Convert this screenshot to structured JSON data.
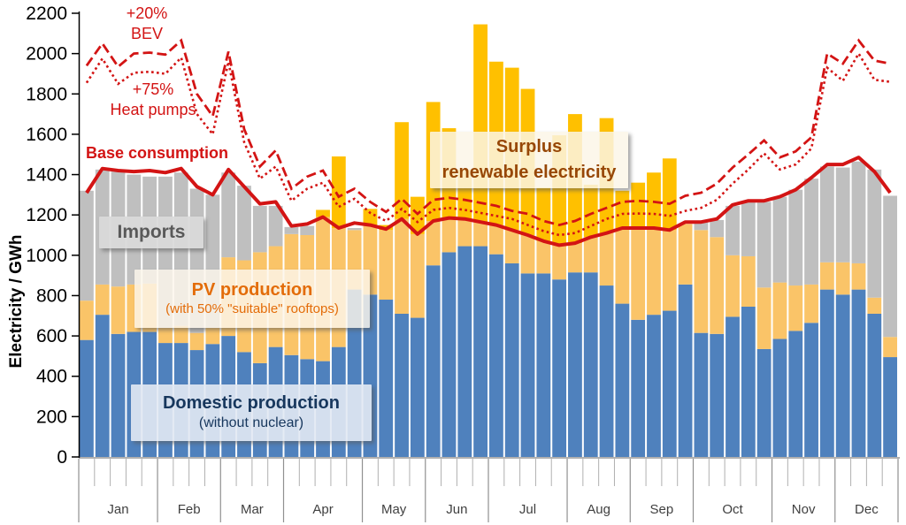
{
  "y_axis": {
    "title": "Electricity / GWh",
    "ticks": [
      0,
      200,
      400,
      600,
      800,
      1000,
      1200,
      1400,
      1600,
      1800,
      2000,
      2200
    ],
    "max": 2200
  },
  "x_axis": {
    "months": [
      "Jan",
      "Feb",
      "Mar",
      "Apr",
      "May",
      "Jun",
      "Jul",
      "Aug",
      "Sep",
      "Oct",
      "Nov",
      "Dec"
    ],
    "weeks_per_month": [
      5,
      4,
      4,
      5,
      4,
      4,
      5,
      4,
      4,
      5,
      4,
      4
    ]
  },
  "annotations": {
    "bev": {
      "line1": "+20%",
      "line2": "BEV"
    },
    "heat_pumps": {
      "line1": "+75%",
      "line2": "Heat pumps"
    },
    "base_consumption": "Base consumption",
    "imports": "Imports",
    "pv": {
      "title": "PV production",
      "subtitle": "(with 50% \"suitable\" rooftops)"
    },
    "surplus": {
      "line1": "Surplus",
      "line2": "renewable electricity"
    },
    "domestic": {
      "title": "Domestic production",
      "subtitle": "(without nuclear)"
    }
  },
  "colors": {
    "domestic": "#4f81bd",
    "pv": "#fac468",
    "imports": "#bfbfbf",
    "surplus": "#ffc000",
    "lines_red": "#d31414",
    "axis_text": "#000000",
    "month_text": "#404040"
  },
  "chart_data": {
    "type": "bar",
    "stacked": true,
    "unit": "GWh",
    "x_unit": "week of year (52 weekly bars)",
    "ylim": [
      0,
      2200
    ],
    "grid": false,
    "note": "Stacked weekly bars (domestic, PV, imports, surplus) with three red consumption lines. Stack series are given as cumulative absolute tops in GWh.",
    "categories_weeks": 52,
    "series": [
      {
        "name": "Domestic production (without nuclear)",
        "kind": "stack-top",
        "color": "#4f81bd",
        "values": [
          580,
          705,
          610,
          620,
          620,
          565,
          565,
          530,
          560,
          600,
          520,
          465,
          545,
          505,
          485,
          475,
          545,
          830,
          805,
          780,
          710,
          690,
          950,
          1015,
          1045,
          1045,
          1005,
          960,
          910,
          910,
          880,
          915,
          915,
          850,
          760,
          680,
          705,
          725,
          855,
          615,
          610,
          695,
          745,
          535,
          585,
          625,
          665,
          830,
          805,
          830,
          710,
          495
        ]
      },
      {
        "name": "PV production (with 50% suitable rooftops)",
        "kind": "stack-top",
        "color": "#fac468",
        "values": [
          775,
          855,
          845,
          855,
          860,
          640,
          650,
          615,
          640,
          990,
          975,
          1015,
          1045,
          1105,
          1100,
          1190,
          1135,
          1125,
          1150,
          1125,
          1180,
          1105,
          1170,
          1185,
          1180,
          1165,
          1150,
          1125,
          1100,
          1070,
          1050,
          1060,
          1090,
          1110,
          1135,
          1135,
          1135,
          1125,
          1155,
          1125,
          1090,
          1000,
          995,
          840,
          865,
          850,
          855,
          965,
          965,
          960,
          790,
          595
        ]
      },
      {
        "name": "Imports",
        "kind": "stack-top",
        "color": "#bfbfbf",
        "values": [
          1320,
          1425,
          1415,
          1400,
          1390,
          1390,
          1410,
          1330,
          1300,
          1410,
          1345,
          1245,
          1245,
          1140,
          1145,
          1190,
          1135,
          1135,
          1150,
          1125,
          1180,
          1105,
          1170,
          1185,
          1180,
          1165,
          1150,
          1125,
          1100,
          1070,
          1050,
          1060,
          1090,
          1110,
          1135,
          1135,
          1135,
          1125,
          1155,
          1165,
          1175,
          1245,
          1265,
          1265,
          1290,
          1325,
          1380,
          1440,
          1435,
          1465,
          1425,
          1295
        ]
      },
      {
        "name": "Surplus renewable electricity",
        "kind": "stack-top",
        "color": "#ffc000",
        "values": [
          1320,
          1425,
          1415,
          1400,
          1390,
          1390,
          1410,
          1330,
          1300,
          1410,
          1345,
          1245,
          1245,
          1140,
          1145,
          1225,
          1490,
          1135,
          1230,
          1150,
          1660,
          1290,
          1760,
          1630,
          1425,
          2145,
          1960,
          1930,
          1825,
          1335,
          1595,
          1700,
          1350,
          1680,
          1320,
          1360,
          1410,
          1480,
          1155,
          1165,
          1175,
          1245,
          1265,
          1265,
          1290,
          1325,
          1380,
          1440,
          1435,
          1465,
          1425,
          1295
        ]
      },
      {
        "name": "Base consumption",
        "kind": "line",
        "style": "solid",
        "color": "#d31414",
        "values": [
          1310,
          1430,
          1420,
          1415,
          1420,
          1410,
          1430,
          1340,
          1300,
          1425,
          1340,
          1255,
          1265,
          1145,
          1155,
          1190,
          1135,
          1160,
          1150,
          1130,
          1180,
          1105,
          1170,
          1185,
          1180,
          1165,
          1150,
          1125,
          1100,
          1070,
          1050,
          1060,
          1090,
          1110,
          1135,
          1135,
          1135,
          1125,
          1165,
          1165,
          1180,
          1250,
          1270,
          1270,
          1290,
          1325,
          1385,
          1450,
          1450,
          1485,
          1415,
          1310
        ]
      },
      {
        "name": "+75% Heat pumps",
        "kind": "line",
        "style": "dotted",
        "color": "#d31414",
        "values": [
          1855,
          1975,
          1850,
          1905,
          1910,
          1900,
          1980,
          1700,
          1600,
          1960,
          1560,
          1380,
          1440,
          1270,
          1330,
          1360,
          1240,
          1280,
          1210,
          1170,
          1230,
          1165,
          1225,
          1235,
          1225,
          1210,
          1195,
          1180,
          1150,
          1120,
          1100,
          1110,
          1145,
          1180,
          1205,
          1207,
          1205,
          1195,
          1220,
          1235,
          1275,
          1355,
          1425,
          1505,
          1425,
          1450,
          1530,
          1930,
          1865,
          2000,
          1870,
          1860
        ]
      },
      {
        "name": "+20% BEV",
        "kind": "line",
        "style": "dashed",
        "color": "#d31414",
        "values": [
          1940,
          2050,
          1935,
          2000,
          2005,
          1995,
          2065,
          1800,
          1690,
          2010,
          1625,
          1440,
          1520,
          1330,
          1390,
          1420,
          1290,
          1330,
          1265,
          1215,
          1280,
          1205,
          1275,
          1285,
          1275,
          1260,
          1245,
          1220,
          1205,
          1170,
          1150,
          1170,
          1205,
          1235,
          1265,
          1270,
          1265,
          1255,
          1295,
          1310,
          1355,
          1435,
          1500,
          1570,
          1485,
          1515,
          1585,
          2000,
          1950,
          2065,
          1965,
          1950
        ]
      }
    ],
    "title": "",
    "xlabel": "",
    "ylabel": "Electricity / GWh",
    "legend_position": "in-plot text boxes"
  }
}
